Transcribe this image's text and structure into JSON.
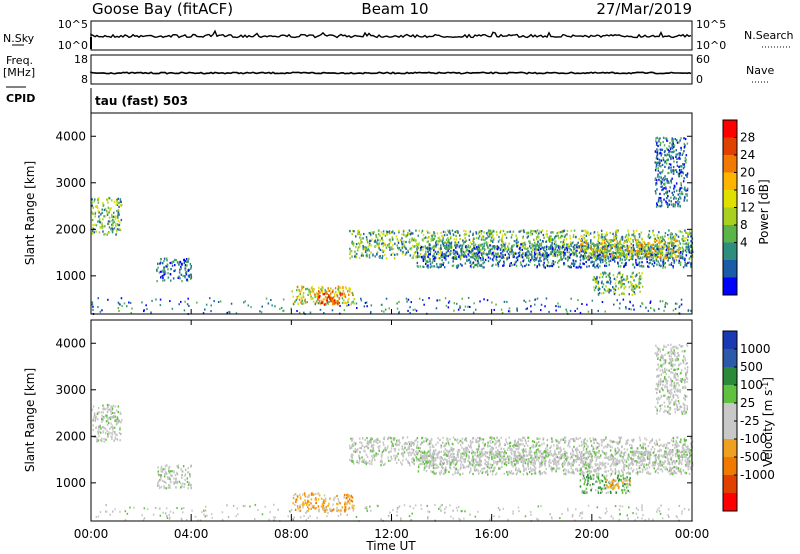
{
  "header": {
    "station": "Goose Bay (fitACF)",
    "beam": "Beam 10",
    "date": "27/Mar/2019"
  },
  "top_panels": {
    "nsky_label": "N.Sky",
    "nsky_ticks": [
      "10^5",
      "10^0"
    ],
    "nsearch_label": "N.Search",
    "nsearch_ticks": [
      "10^5",
      "10^0"
    ],
    "freq_label": "Freq.",
    "freq_unit": "[MHz]",
    "freq_ticks": [
      "18",
      "8"
    ],
    "nave_label": "Nave",
    "nave_ticks": [
      "60",
      "0"
    ],
    "cpid_label": "CPID",
    "cpid_value": "tau (fast) 503"
  },
  "chart_data": [
    {
      "type": "heatmap",
      "name": "power",
      "ylabel": "Slant Range [km]",
      "yticks": [
        "4000",
        "3000",
        "2000",
        "1000"
      ],
      "ylim": [
        180,
        4500
      ],
      "xlim": [
        0,
        24
      ],
      "colorbar": {
        "label": "Power [dB]",
        "ticks": [
          "28",
          "24",
          "20",
          "16",
          "12",
          "8",
          "4"
        ],
        "colors": [
          "#ff0000",
          "#e04000",
          "#f07a00",
          "#ffb400",
          "#e0e000",
          "#a8d020",
          "#5ab44a",
          "#2e8e7e",
          "#1a5ca8",
          "#0000ff"
        ]
      },
      "regions": [
        {
          "t": [
            0.0,
            1.2
          ],
          "r": [
            1900,
            2700
          ],
          "level": "mid"
        },
        {
          "t": [
            2.6,
            4.0
          ],
          "r": [
            900,
            1400
          ],
          "level": "low"
        },
        {
          "t": [
            8.0,
            10.5
          ],
          "r": [
            400,
            800
          ],
          "level": "high"
        },
        {
          "t": [
            9.0,
            10.0
          ],
          "r": [
            400,
            700
          ],
          "level": "peak"
        },
        {
          "t": [
            10.3,
            24.0
          ],
          "r": [
            1400,
            2000
          ],
          "level": "mid"
        },
        {
          "t": [
            13.0,
            24.0
          ],
          "r": [
            1200,
            1700
          ],
          "level": "low"
        },
        {
          "t": [
            19.5,
            23.5
          ],
          "r": [
            1400,
            1800
          ],
          "level": "high"
        },
        {
          "t": [
            20.0,
            22.0
          ],
          "r": [
            600,
            1100
          ],
          "level": "mid"
        },
        {
          "t": [
            22.5,
            23.8
          ],
          "r": [
            2500,
            4000
          ],
          "level": "low"
        }
      ]
    },
    {
      "type": "heatmap",
      "name": "velocity",
      "ylabel": "Slant Range [km]",
      "yticks": [
        "4000",
        "3000",
        "2000",
        "1000"
      ],
      "ylim": [
        180,
        4500
      ],
      "xlim": [
        0,
        24
      ],
      "xticks": [
        "00:00",
        "04:00",
        "08:00",
        "12:00",
        "16:00",
        "20:00",
        "00:00"
      ],
      "xlabel": "Time UT",
      "colorbar": {
        "label": "Velocity [m s",
        "label_sup": "-1",
        "label_end": "]",
        "ticks": [
          "1000",
          "500",
          "100",
          "25",
          "-25",
          "-100",
          "-500",
          "-1000"
        ],
        "colors": [
          "#1a3ab4",
          "#2a5aa8",
          "#2a8a3a",
          "#60c040",
          "#c8c8c8",
          "#c8c8c8",
          "#f0a020",
          "#f07a00",
          "#e04000",
          "#ff0000"
        ]
      },
      "regions": [
        {
          "t": [
            0.0,
            1.2
          ],
          "r": [
            1900,
            2700
          ],
          "v": "grey"
        },
        {
          "t": [
            2.6,
            4.0
          ],
          "r": [
            900,
            1400
          ],
          "v": "grey"
        },
        {
          "t": [
            8.0,
            10.5
          ],
          "r": [
            400,
            800
          ],
          "v": "orange"
        },
        {
          "t": [
            10.3,
            24.0
          ],
          "r": [
            1400,
            2000
          ],
          "v": "grey"
        },
        {
          "t": [
            13.0,
            24.0
          ],
          "r": [
            1200,
            1700
          ],
          "v": "grey"
        },
        {
          "t": [
            19.5,
            21.5
          ],
          "r": [
            800,
            1200
          ],
          "v": "green"
        },
        {
          "t": [
            20.5,
            21.5
          ],
          "r": [
            900,
            1100
          ],
          "v": "orange"
        },
        {
          "t": [
            22.5,
            23.8
          ],
          "r": [
            2500,
            4000
          ],
          "v": "grey"
        }
      ]
    }
  ]
}
